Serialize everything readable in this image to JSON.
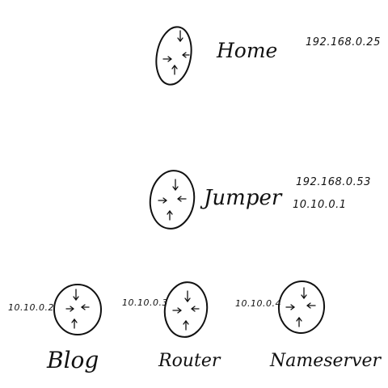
{
  "diagram": {
    "stroke_color": "#111111",
    "background": "#ffffff",
    "node_icon": "router-icon",
    "nodes": [
      {
        "id": "home",
        "label": "Home",
        "addresses": [
          "192.168.0.25"
        ]
      },
      {
        "id": "jumper",
        "label": "Jumper",
        "addresses": [
          "192.168.0.53",
          "10.10.0.1"
        ]
      },
      {
        "id": "blog",
        "label": "Blog",
        "addresses": [
          "10.10.0.2"
        ]
      },
      {
        "id": "router",
        "label": "Router",
        "addresses": [
          "10.10.0.3"
        ]
      },
      {
        "id": "nameserver",
        "label": "Nameserver",
        "addresses": [
          "10.10.0.4"
        ]
      }
    ]
  }
}
